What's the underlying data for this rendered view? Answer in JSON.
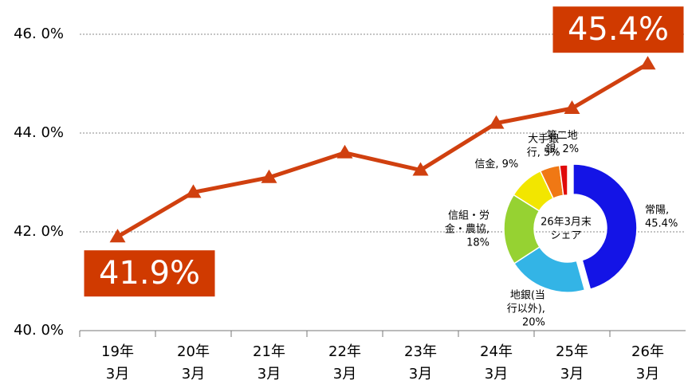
{
  "chart_data": [
    {
      "type": "line",
      "categories": [
        [
          "19年",
          "3月"
        ],
        [
          "20年",
          "3月"
        ],
        [
          "21年",
          "3月"
        ],
        [
          "22年",
          "3月"
        ],
        [
          "23年",
          "3月"
        ],
        [
          "24年",
          "3月"
        ],
        [
          "25年",
          "3月"
        ],
        [
          "26年",
          "3月"
        ]
      ],
      "values": [
        41.9,
        42.8,
        43.1,
        43.6,
        43.25,
        44.2,
        44.5,
        45.4
      ],
      "value_labels": [
        "41.9%",
        null,
        null,
        null,
        null,
        null,
        null,
        "45.4%"
      ],
      "color": "#d0400f",
      "ylim": [
        40,
        46
      ],
      "yticks": [
        {
          "value": 40,
          "label": "40. 0%"
        },
        {
          "value": 42,
          "label": "42. 0%"
        },
        {
          "value": 44,
          "label": "44. 0%"
        },
        {
          "value": 46,
          "label": "46. 0%"
        }
      ],
      "grid": true
    },
    {
      "type": "pie",
      "center_label": [
        "26年3月末",
        "シェア"
      ],
      "values": [
        45.4,
        20,
        18,
        9,
        5,
        2
      ],
      "value_labels": [
        [
          "常陽,",
          "45.4%"
        ],
        [
          "地銀(当",
          "行以外),",
          "20%"
        ],
        [
          "信組・労",
          "金・農協,",
          "18%"
        ],
        [
          "信金, 9%"
        ],
        [
          "大手銀",
          "行, 5%"
        ],
        [
          "第二地",
          "銀, 2%"
        ]
      ],
      "colors": [
        "#1414e6",
        "#33b4e6",
        "#96d232",
        "#f2e600",
        "#f07814",
        "#e00a0a"
      ]
    }
  ]
}
